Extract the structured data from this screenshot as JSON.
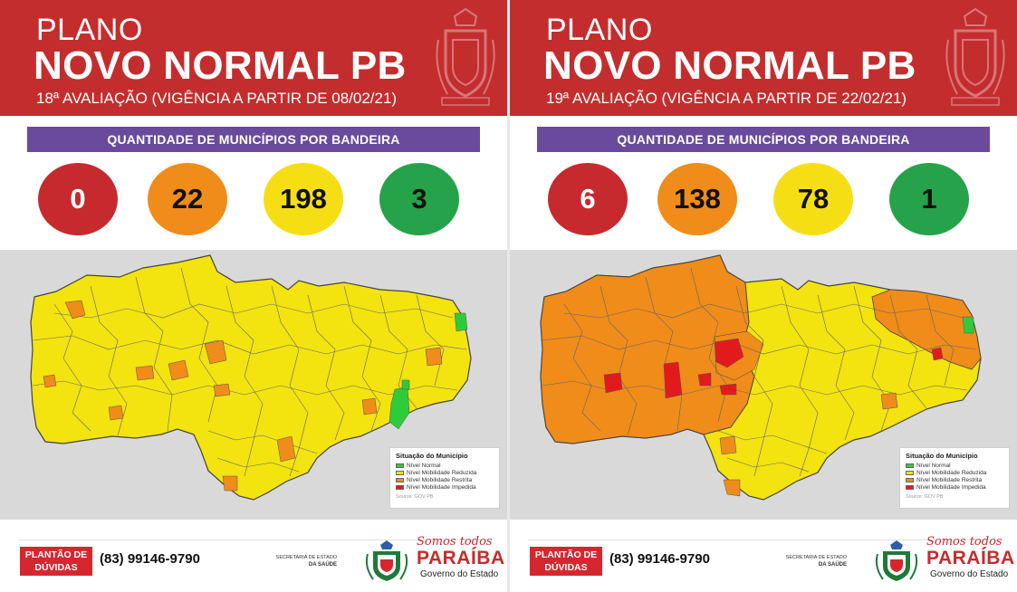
{
  "colors": {
    "header": "#c42d2d",
    "banner": "#6a4a9c",
    "red": "#c62a2e",
    "orange": "#f08c19",
    "yellow": "#f6de14",
    "green": "#26a24a",
    "map_bg": "#d9d9d9"
  },
  "panels": [
    {
      "plano": "PLANO",
      "title": "NOVO NORMAL PB",
      "evaluation": "18ª AVALIAÇÃO (VIGÊNCIA A PARTIR DE 08/02/21)",
      "banner": "QUANTIDADE DE MUNICÍPIOS POR BANDEIRA",
      "counts": {
        "red": "0",
        "orange": "22",
        "yellow": "198",
        "green": "3"
      },
      "map_state": "mostly-yellow",
      "legend": {
        "title": "Situação do Município",
        "items": [
          "Nível Normal",
          "Nível Mobilidade Reduzida",
          "Nível Mobilidade Restrita",
          "Nível Mobilidade Impedida"
        ],
        "source": "Source: GOV PB"
      },
      "footer": {
        "plantao": "PLANTÃO DE DÚVIDAS",
        "phone": "(83) 99146-9790",
        "secretaria_line1": "SECRETARIA DE ESTADO",
        "secretaria_line2": "DA SAÚDE",
        "somos": "Somos todos",
        "paraiba": "PARAÍBA",
        "governo": "Governo do Estado"
      }
    },
    {
      "plano": "PLANO",
      "title": "NOVO NORMAL PB",
      "evaluation": "19ª AVALIAÇÃO (VIGÊNCIA A PARTIR DE 22/02/21)",
      "banner": "QUANTIDADE DE MUNICÍPIOS POR BANDEIRA",
      "counts": {
        "red": "6",
        "orange": "138",
        "yellow": "78",
        "green": "1"
      },
      "map_state": "mostly-orange",
      "legend": {
        "title": "Situação do Município",
        "items": [
          "Nível Normal",
          "Nível Mobilidade Reduzida",
          "Nível Mobilidade Restrita",
          "Nível Mobilidade Impedida"
        ],
        "source": "Source: GOV PB"
      },
      "footer": {
        "plantao": "PLANTÃO DE DÚVIDAS",
        "phone": "(83) 99146-9790",
        "secretaria_line1": "SECRETARIA DE ESTADO",
        "secretaria_line2": "DA SAÚDE",
        "somos": "Somos todos",
        "paraiba": "PARAÍBA",
        "governo": "Governo do Estado"
      }
    }
  ]
}
